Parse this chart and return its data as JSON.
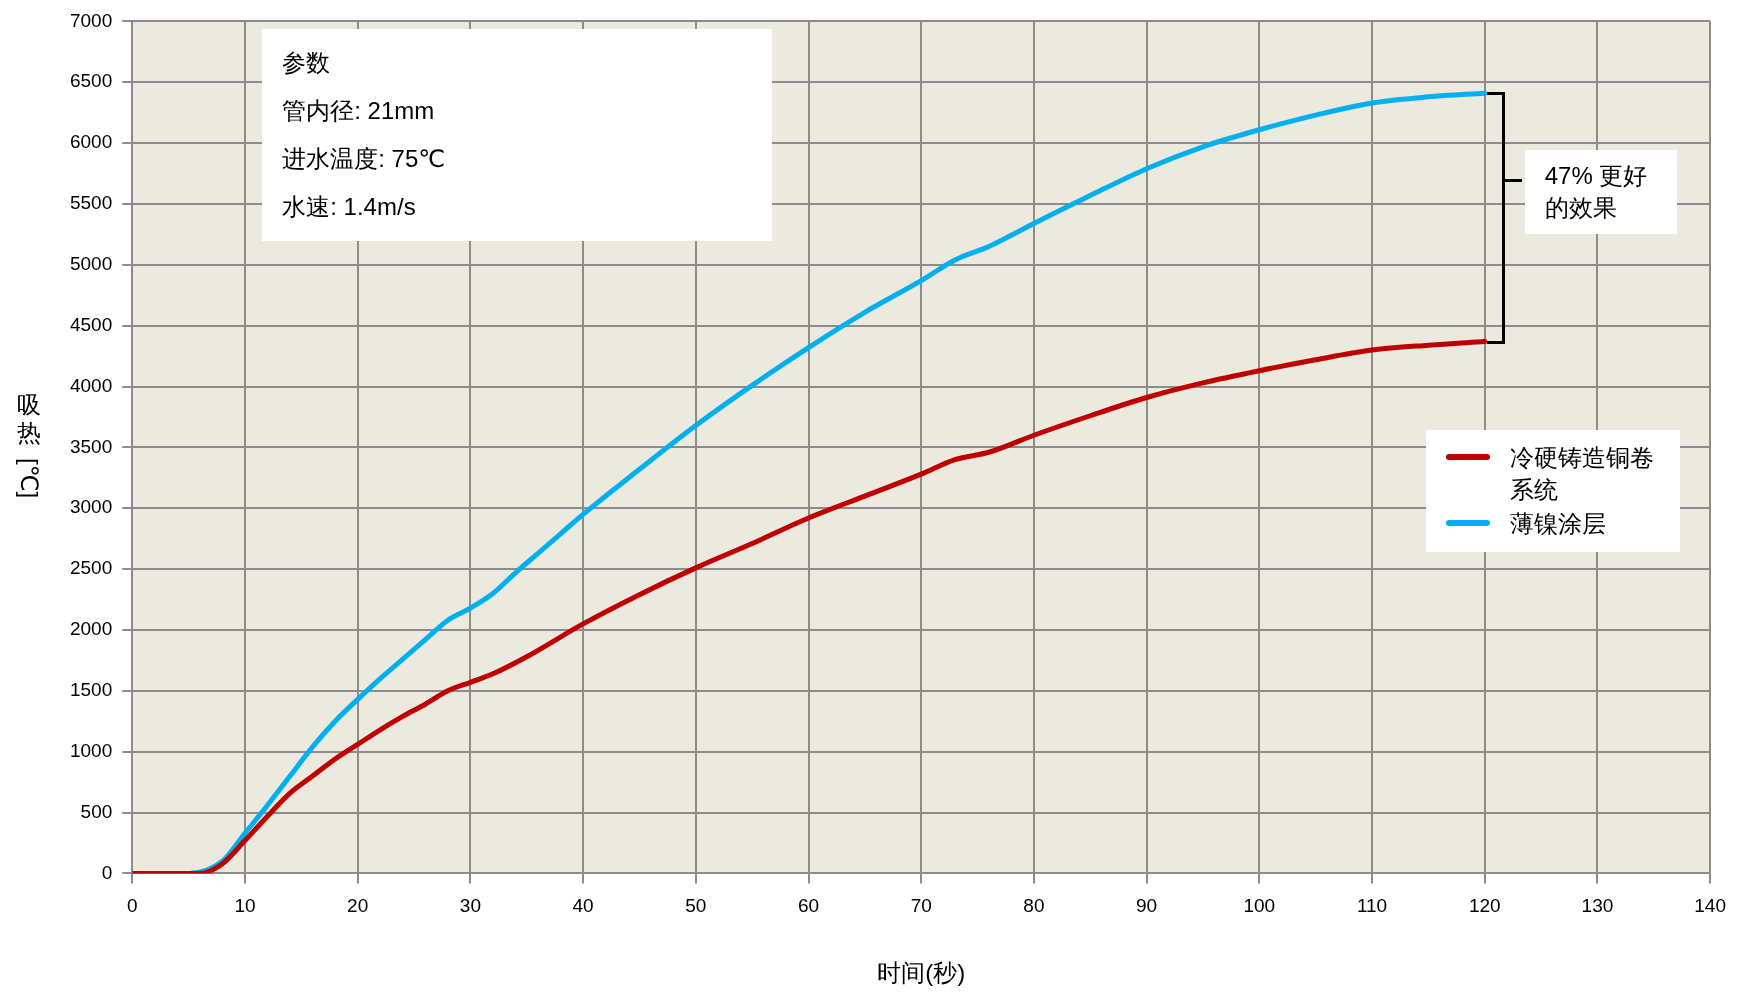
{
  "chart_data": {
    "type": "line",
    "xlabel": "时间(秒)",
    "ylabel": "吸热[℃]",
    "xlim": [
      0,
      140
    ],
    "xticks": [
      0,
      10,
      20,
      30,
      40,
      50,
      60,
      70,
      80,
      90,
      100,
      110,
      120,
      130,
      140
    ],
    "ylim": [
      0,
      7000
    ],
    "yticks": [
      0,
      500,
      1000,
      1500,
      2000,
      2500,
      3000,
      3500,
      4000,
      4500,
      5000,
      5500,
      6000,
      6500,
      7000
    ],
    "grid": true,
    "legend": "right",
    "marker": "none",
    "line_style": "solid",
    "annotations": [
      "参数",
      "管内径: 21mm",
      "进水温度: 75℃",
      "水速: 1.4m/s",
      "47% 更好的效果"
    ],
    "series": [
      {
        "name": "冷硬铸造铜卷系统",
        "color": "#c00000",
        "x": [
          0,
          6,
          8,
          10,
          12,
          14,
          16,
          18,
          20,
          22,
          24,
          26,
          28,
          30,
          32,
          35,
          40,
          45,
          50,
          55,
          60,
          65,
          70,
          73,
          76,
          80,
          85,
          90,
          95,
          100,
          105,
          110,
          115,
          120
        ],
        "values": [
          0,
          0,
          80,
          270,
          470,
          660,
          800,
          940,
          1060,
          1180,
          1290,
          1390,
          1500,
          1570,
          1640,
          1780,
          2050,
          2290,
          2510,
          2710,
          2920,
          3100,
          3280,
          3400,
          3460,
          3600,
          3760,
          3910,
          4030,
          4130,
          4220,
          4300,
          4340,
          4370
        ]
      },
      {
        "name": "薄镍涂层",
        "color": "#00b0f0",
        "x": [
          0,
          5,
          8,
          10,
          12,
          14,
          16,
          18,
          20,
          22,
          24,
          26,
          28,
          30,
          32,
          34,
          36,
          38,
          40,
          45,
          50,
          55,
          60,
          65,
          70,
          73,
          76,
          80,
          85,
          90,
          95,
          100,
          105,
          110,
          115,
          120
        ],
        "values": [
          0,
          0,
          100,
          330,
          560,
          800,
          1040,
          1250,
          1430,
          1600,
          1760,
          1920,
          2080,
          2180,
          2300,
          2470,
          2630,
          2790,
          2950,
          3320,
          3680,
          4010,
          4320,
          4610,
          4870,
          5040,
          5150,
          5340,
          5570,
          5790,
          5970,
          6110,
          6230,
          6330,
          6380,
          6410
        ]
      }
    ]
  }
}
